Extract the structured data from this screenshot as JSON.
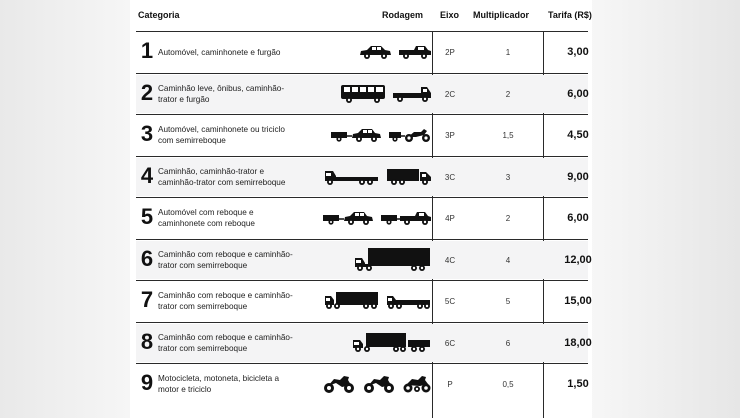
{
  "headers": {
    "categoria": "Categoria",
    "rodagem": "Rodagem",
    "eixo": "Eixo",
    "multiplicador": "Multiplicador",
    "tarifa": "Tarifa (R$)"
  },
  "rows": [
    {
      "num": "1",
      "desc": "Automóvel, caminhonete e furgão",
      "eixo": "2P",
      "mult": "1",
      "tarifa": "3,00",
      "vehicles": [
        "car-icon",
        "pickup-truck-icon"
      ]
    },
    {
      "num": "2",
      "desc": "Caminhão leve, ônibus, caminhão-trator e furgão",
      "eixo": "2C",
      "mult": "2",
      "tarifa": "6,00",
      "vehicles": [
        "bus-icon",
        "light-truck-icon"
      ]
    },
    {
      "num": "3",
      "desc": "Automóvel, caminhonete ou triciclo com semirreboque",
      "eixo": "3P",
      "mult": "1,5",
      "tarifa": "4,50",
      "vehicles": [
        "car-with-trailer-icon",
        "motorcycle-with-trailer-icon"
      ]
    },
    {
      "num": "4",
      "desc": "Caminhão, caminhão-trator e caminhão-trator com semirreboque",
      "eixo": "3C",
      "mult": "3",
      "tarifa": "9,00",
      "vehicles": [
        "flatbed-truck-icon",
        "box-truck-icon"
      ]
    },
    {
      "num": "5",
      "desc": "Automóvel com reboque e caminhonete com reboque",
      "eixo": "4P",
      "mult": "2",
      "tarifa": "6,00",
      "vehicles": [
        "car-with-trailer-icon",
        "pickup-with-trailer-icon"
      ]
    },
    {
      "num": "6",
      "desc": "Caminhão com reboque e caminhão-trator com semirreboque",
      "eixo": "4C",
      "mult": "4",
      "tarifa": "12,00",
      "vehicles": [
        "semi-trailer-truck-icon"
      ]
    },
    {
      "num": "7",
      "desc": "Caminhão com reboque e caminhão-trator com semirreboque",
      "eixo": "5C",
      "mult": "5",
      "tarifa": "15,00",
      "vehicles": [
        "truck-with-trailer-icon",
        "truck-with-flatbed-trailer-icon"
      ]
    },
    {
      "num": "8",
      "desc": "Caminhão com reboque e caminhão-trator com semirreboque",
      "eixo": "6C",
      "mult": "6",
      "tarifa": "18,00",
      "vehicles": [
        "long-semi-trailer-truck-icon"
      ]
    },
    {
      "num": "9",
      "desc": "Motocicleta, motoneta, bicicleta a motor e triciclo",
      "eixo": "P",
      "mult": "0,5",
      "tarifa": "1,50",
      "vehicles": [
        "motorcycle-icon",
        "motorcycle-icon",
        "tricycle-icon"
      ]
    }
  ]
}
